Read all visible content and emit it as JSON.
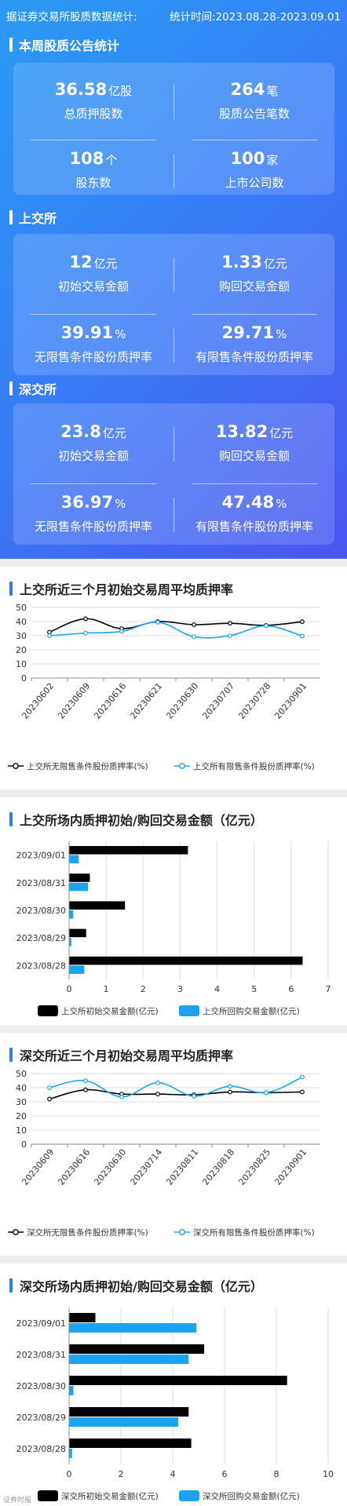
{
  "header": {
    "left": "据证券交易所股质数据统计:",
    "right": "统计时间:2023.08.28-2023.09.01"
  },
  "sections": {
    "weekly": {
      "title": "本周股质公告统计",
      "cells": [
        {
          "value": "36.58",
          "unit": "亿股",
          "label": "总质押股数"
        },
        {
          "value": "264",
          "unit": "笔",
          "label": "股质公告笔数"
        },
        {
          "value": "108",
          "unit": "个",
          "label": "股东数"
        },
        {
          "value": "100",
          "unit": "家",
          "label": "上市公司数"
        }
      ]
    },
    "sse": {
      "title": "上交所",
      "cells": [
        {
          "value": "12",
          "unit": "亿元",
          "label": "初始交易金额"
        },
        {
          "value": "1.33",
          "unit": "亿元",
          "label": "购回交易金额"
        },
        {
          "value": "39.91",
          "unit": "%",
          "label": "无限售条件股份质押率"
        },
        {
          "value": "29.71",
          "unit": "%",
          "label": "有限售条件股份质押率"
        }
      ]
    },
    "szse": {
      "title": "深交所",
      "cells": [
        {
          "value": "23.8",
          "unit": "亿元",
          "label": "初始交易金额"
        },
        {
          "value": "13.82",
          "unit": "亿元",
          "label": "购回交易金额"
        },
        {
          "value": "36.97",
          "unit": "%",
          "label": "无限售条件股份质押率"
        },
        {
          "value": "47.48",
          "unit": "%",
          "label": "有限售条件股份质押率"
        }
      ]
    }
  },
  "colors": {
    "black_series": "#000000",
    "blue_series": "#1aa3f0",
    "accent": "#2f7ff5"
  },
  "watermark": "证券时报",
  "chart_data": [
    {
      "id": "sse-rate",
      "type": "line",
      "title": "上交所近三个月初始交易周平均质押率",
      "categories": [
        "20230602",
        "20230609",
        "20230616",
        "20230621",
        "20230630",
        "20230707",
        "20230728",
        "20230901"
      ],
      "ylim": [
        0,
        50
      ],
      "yticks": [
        0,
        10,
        20,
        30,
        40,
        50
      ],
      "grid": true,
      "legend": "bottom",
      "series": [
        {
          "name": "上交所无限售条件股份质押率(%)",
          "color": "#000000",
          "values": [
            32.5,
            42.0,
            35.0,
            40.0,
            37.8,
            38.8,
            37.3,
            39.9
          ]
        },
        {
          "name": "上交所有限售条件股份质押率(%)",
          "color": "#1aa3f0",
          "values": [
            30.0,
            31.8,
            33.0,
            39.5,
            29.3,
            30.0,
            37.0,
            29.7
          ]
        }
      ]
    },
    {
      "id": "sse-amount",
      "type": "bar",
      "orientation": "horizontal",
      "title": "上交所场内质押初始/购回交易金额（亿元）",
      "categories": [
        "2023/09/01",
        "2023/08/31",
        "2023/08/30",
        "2023/08/29",
        "2023/08/28"
      ],
      "xlim": [
        0,
        7
      ],
      "xticks": [
        0,
        1,
        2,
        3,
        4,
        5,
        6,
        7
      ],
      "grid": true,
      "legend": "bottom",
      "series": [
        {
          "name": "上交所初始交易金额(亿元)",
          "color": "#000000",
          "values": [
            3.2,
            0.55,
            1.5,
            0.45,
            6.3
          ]
        },
        {
          "name": "上交所回购交易金额(亿元)",
          "color": "#1aa3f0",
          "values": [
            0.25,
            0.5,
            0.1,
            0.05,
            0.4
          ]
        }
      ]
    },
    {
      "id": "szse-rate",
      "type": "line",
      "title": "深交所近三个月初始交易周平均质押率",
      "categories": [
        "20230609",
        "20230616",
        "20230630",
        "20230714",
        "20230811",
        "20230818",
        "20230825",
        "20230901"
      ],
      "ylim": [
        0,
        50
      ],
      "yticks": [
        0,
        10,
        20,
        30,
        40,
        50
      ],
      "grid": true,
      "legend": "bottom",
      "series": [
        {
          "name": "深交所无限售条件股份质押率(%)",
          "color": "#000000",
          "values": [
            32.0,
            38.5,
            35.5,
            35.5,
            35.0,
            37.0,
            36.5,
            37.0
          ]
        },
        {
          "name": "深交所有限售条件股份质押率(%)",
          "color": "#1aa3f0",
          "values": [
            40.0,
            45.0,
            33.5,
            43.5,
            34.0,
            41.0,
            36.5,
            47.5
          ]
        }
      ]
    },
    {
      "id": "szse-amount",
      "type": "bar",
      "orientation": "horizontal",
      "title": "深交所场内质押初始/购回交易金额（亿元）",
      "categories": [
        "2023/09/01",
        "2023/08/31",
        "2023/08/30",
        "2023/08/29",
        "2023/08/28"
      ],
      "xlim": [
        0,
        10
      ],
      "xticks": [
        0,
        2,
        4,
        6,
        8,
        10
      ],
      "grid": true,
      "legend": "bottom",
      "series": [
        {
          "name": "深交所初始交易金额(亿元)",
          "color": "#000000",
          "values": [
            1.0,
            5.2,
            8.4,
            4.6,
            4.7
          ]
        },
        {
          "name": "深交所回购交易金额(亿元)",
          "color": "#1aa3f0",
          "values": [
            4.9,
            4.6,
            0.15,
            4.2,
            0.1
          ]
        }
      ]
    }
  ]
}
